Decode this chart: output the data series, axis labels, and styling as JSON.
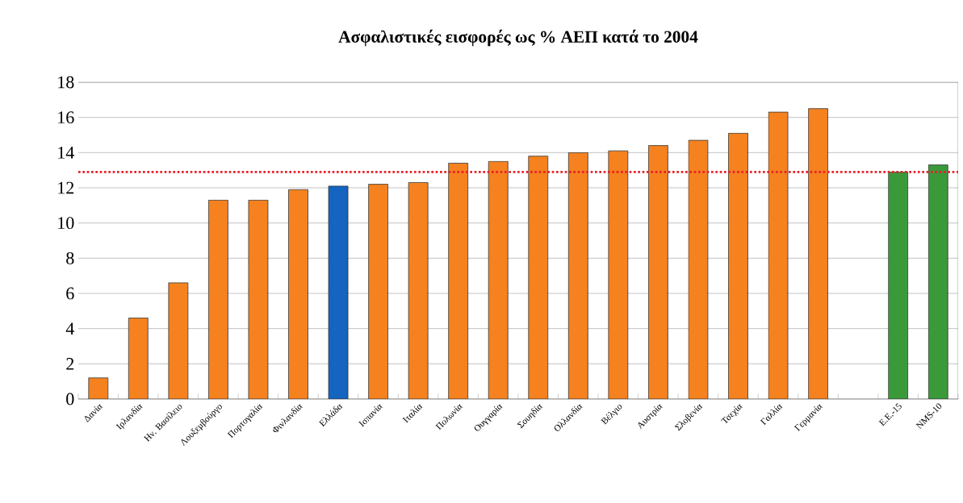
{
  "chart_data": {
    "type": "bar",
    "title": "Ασφαλιστικές εισφορές ως % ΑΕΠ κατά το 2004",
    "categories": [
      "Δανία",
      "Ιρλανδία",
      "Ην. Βασίλειο",
      "Λουξεμβούργο",
      "Πορτογαλία",
      "Φινλανδία",
      "Ελλάδα",
      "Ισπανία",
      "Ιταλία",
      "Πολωνία",
      "Ουγγαρία",
      "Σουηδία",
      "Ολλανδία",
      "Βέλγιο",
      "Αυστρία",
      "Σλοβενία",
      "Τσεχία",
      "Γαλλία",
      "Γερμανία",
      null,
      "Ε.Ε.-15",
      "NMS-10"
    ],
    "values": [
      1.2,
      4.6,
      6.6,
      11.3,
      11.3,
      11.9,
      12.1,
      12.2,
      12.3,
      13.4,
      13.5,
      13.8,
      14.0,
      14.1,
      14.4,
      14.7,
      15.1,
      16.3,
      16.5,
      null,
      12.9,
      13.3
    ],
    "colors": [
      "#f5821f",
      "#f5821f",
      "#f5821f",
      "#f5821f",
      "#f5821f",
      "#f5821f",
      "#1464c0",
      "#f5821f",
      "#f5821f",
      "#f5821f",
      "#f5821f",
      "#f5821f",
      "#f5821f",
      "#f5821f",
      "#f5821f",
      "#f5821f",
      "#f5821f",
      "#f5821f",
      "#f5821f",
      "#f5821f",
      "#3a9a3a",
      "#3a9a3a"
    ],
    "ylim": [
      0,
      18
    ],
    "yticks": [
      0,
      2,
      4,
      6,
      8,
      10,
      12,
      14,
      16,
      18
    ],
    "grid": "y",
    "ref_lines": [
      {
        "axis": "y",
        "value": 12.9,
        "color": "#e8202a",
        "line_style": "dotted"
      }
    ]
  }
}
